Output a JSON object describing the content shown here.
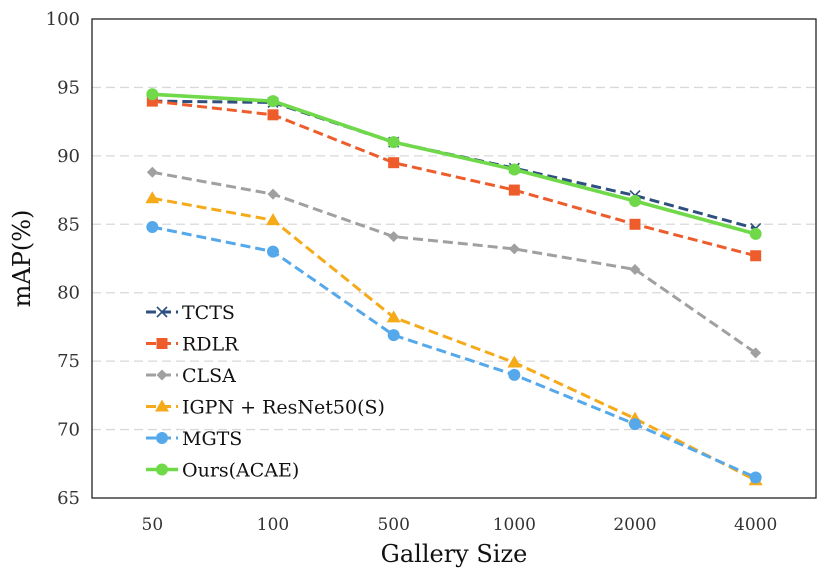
{
  "chart_data": {
    "type": "line",
    "title": "",
    "xlabel": "Gallery Size",
    "ylabel": "mAP(%)",
    "categories": [
      "50",
      "100",
      "500",
      "1000",
      "2000",
      "4000"
    ],
    "ylim": [
      65,
      100
    ],
    "yticks": [
      65,
      70,
      75,
      80,
      85,
      90,
      95,
      100
    ],
    "grid": true,
    "legend_position": "bottom-left",
    "series": [
      {
        "name": "TCTS",
        "values": [
          94.0,
          93.9,
          91.0,
          89.1,
          87.1,
          84.7
        ],
        "color": "#2f4f7f",
        "marker": "x",
        "dash": true
      },
      {
        "name": "RDLR",
        "values": [
          94.0,
          93.0,
          89.5,
          87.5,
          85.0,
          82.7
        ],
        "color": "#ee5c2c",
        "marker": "square",
        "dash": true
      },
      {
        "name": "CLSA",
        "values": [
          88.8,
          87.2,
          84.1,
          83.2,
          81.7,
          75.6
        ],
        "color": "#a0a0a0",
        "marker": "diamond",
        "dash": true
      },
      {
        "name": "IGPN + ResNet50(S)",
        "values": [
          86.9,
          85.3,
          78.2,
          74.9,
          70.8,
          66.3
        ],
        "color": "#f5aa19",
        "marker": "triangle",
        "dash": true
      },
      {
        "name": "MGTS",
        "values": [
          84.8,
          83.0,
          76.9,
          74.0,
          70.4,
          66.5
        ],
        "color": "#55a8ea",
        "marker": "circle",
        "dash": true
      },
      {
        "name": "Ours(ACAE)",
        "values": [
          94.5,
          94.0,
          91.0,
          89.0,
          86.7,
          84.3
        ],
        "color": "#6fd94a",
        "marker": "circle",
        "dash": false
      }
    ]
  }
}
